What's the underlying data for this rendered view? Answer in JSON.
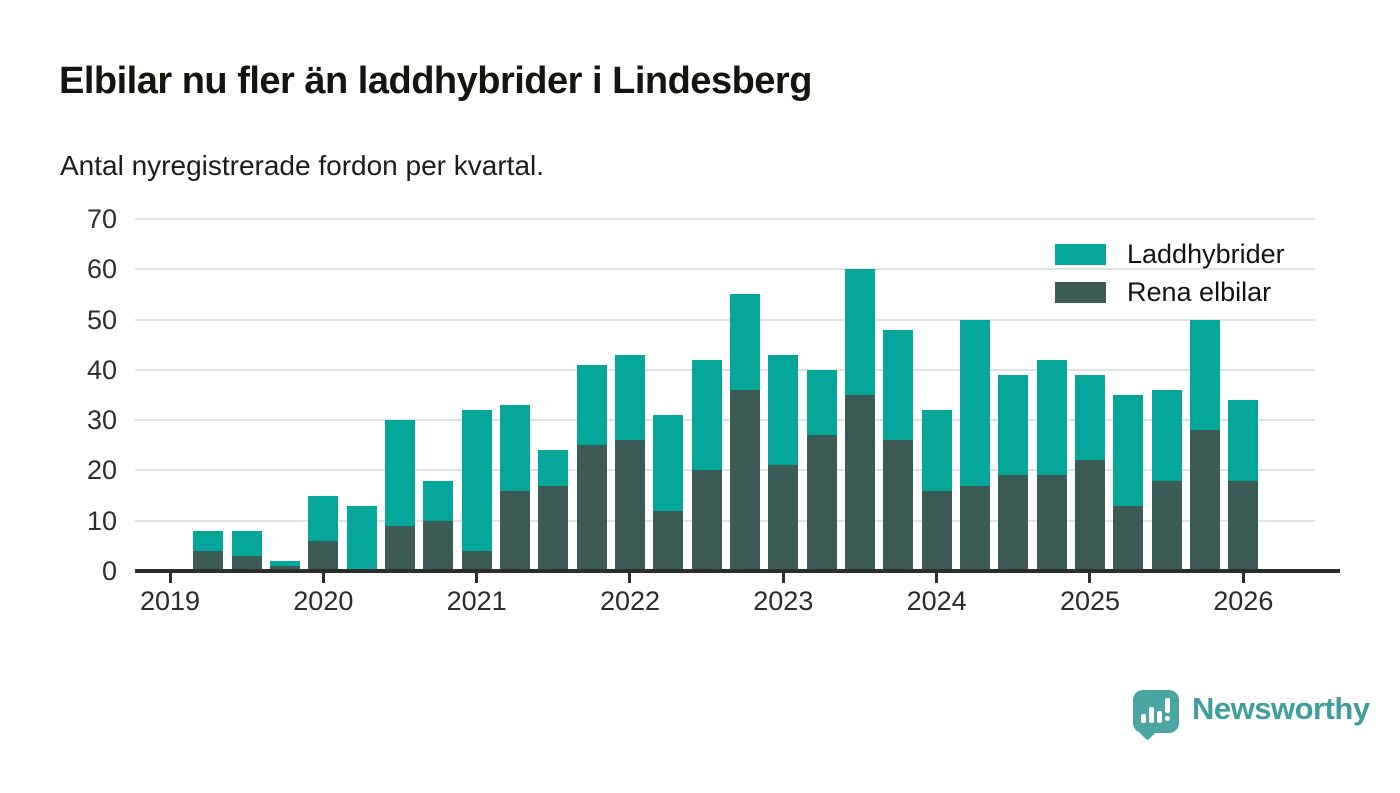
{
  "header": {
    "title": "Elbilar nu fler än laddhybrider i Lindesberg",
    "subtitle": "Antal nyregistrerade fordon per kvartal."
  },
  "legend": {
    "items": [
      {
        "label": "Laddhybrider",
        "color": "#05a79b"
      },
      {
        "label": "Rena elbilar",
        "color": "#3c5b57"
      }
    ]
  },
  "chart_data": {
    "type": "bar",
    "stacked": true,
    "title": "Elbilar nu fler än laddhybrider i Lindesberg",
    "subtitle": "Antal nyregistrerade fordon per kvartal.",
    "xlabel": "",
    "ylabel": "",
    "ylim": [
      0,
      70
    ],
    "yticks": [
      0,
      10,
      20,
      30,
      40,
      50,
      60,
      70
    ],
    "grid": "horizontal",
    "legend_position": "top-right",
    "x": [
      "2019 Q1",
      "2019 Q2",
      "2019 Q3",
      "2019 Q4",
      "2020 Q1",
      "2020 Q2",
      "2020 Q3",
      "2020 Q4",
      "2021 Q1",
      "2021 Q2",
      "2021 Q3",
      "2021 Q4",
      "2022 Q1",
      "2022 Q2",
      "2022 Q3",
      "2022 Q4",
      "2023 Q1",
      "2023 Q2",
      "2023 Q3",
      "2023 Q4",
      "2024 Q1",
      "2024 Q2",
      "2024 Q3",
      "2024 Q4",
      "2025 Q1",
      "2025 Q2",
      "2025 Q3",
      "2025 Q4",
      "2026 Q1"
    ],
    "year_ticks": [
      "2019",
      "2020",
      "2021",
      "2022",
      "2023",
      "2024",
      "2025",
      "2026"
    ],
    "series": [
      {
        "name": "Rena elbilar",
        "color": "#3c5b57",
        "values": [
          0,
          4,
          3,
          1,
          6,
          0,
          9,
          10,
          4,
          16,
          17,
          25,
          26,
          12,
          20,
          36,
          21,
          27,
          35,
          26,
          16,
          17,
          19,
          19,
          22,
          13,
          18,
          28,
          18
        ]
      },
      {
        "name": "Laddhybrider",
        "color": "#05a79b",
        "values": [
          0,
          4,
          5,
          1,
          9,
          13,
          21,
          8,
          28,
          17,
          7,
          16,
          17,
          19,
          22,
          19,
          22,
          13,
          25,
          22,
          16,
          33,
          20,
          23,
          17,
          22,
          18,
          22,
          16
        ]
      }
    ],
    "totals": [
      0,
      8,
      8,
      2,
      15,
      13,
      30,
      18,
      32,
      33,
      24,
      41,
      43,
      31,
      42,
      55,
      43,
      40,
      60,
      48,
      32,
      50,
      39,
      42,
      39,
      35,
      36,
      50,
      34
    ]
  },
  "footer": {
    "brand": "Newsworthy"
  },
  "colors": {
    "laddhybrider": "#05a79b",
    "rena_elbilar": "#3c5b57",
    "axis": "#2d2d2d",
    "gridline": "#e2e2e2",
    "logo_badge": "#4ba5a3",
    "brand_text": "#3f9e9b"
  }
}
